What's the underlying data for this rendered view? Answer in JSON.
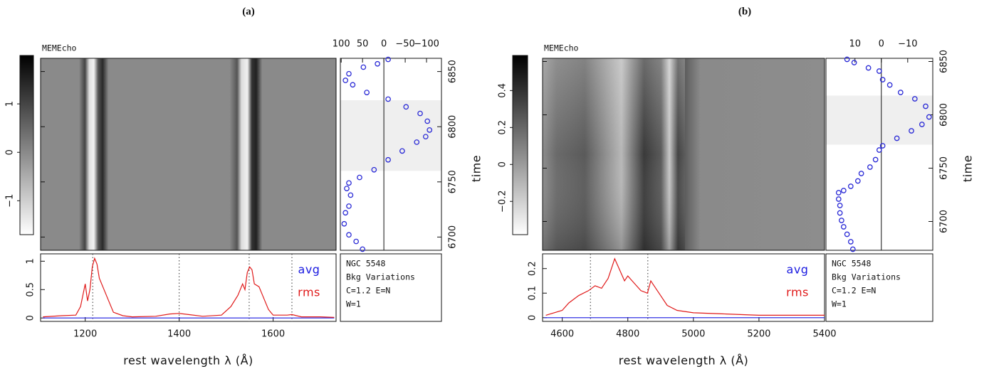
{
  "chart_data": [
    {
      "type": "echo-map",
      "label": "(a)",
      "title": "MEMEcho",
      "colorbar": {
        "lim": [
          -1.7,
          2.0
        ],
        "ticks": [
          {
            "value": -1,
            "label": "−1"
          },
          0,
          1
        ]
      },
      "lightcurve": {
        "xlim": [
          102,
          -135
        ],
        "xticks": [
          100,
          50,
          0,
          {
            "value": -50,
            "label": "−50"
          },
          {
            "value": -100,
            "label": "−100"
          }
        ],
        "ylim": [
          6688,
          6862
        ],
        "yticks": [
          6700,
          6750,
          6800,
          6850
        ],
        "ylabel": "time",
        "band": [
          6760,
          6824
        ],
        "color": "#2b2bd6",
        "x": [
          50,
          65,
          82,
          93,
          90,
          82,
          78,
          87,
          82,
          57,
          23,
          -10,
          -43,
          -77,
          -98,
          -107,
          -102,
          -85,
          -52,
          -10,
          40,
          73,
          90,
          82,
          48,
          15,
          -10
        ],
        "y": [
          6689,
          6696,
          6702,
          6712,
          6722,
          6728,
          6738,
          6744,
          6749,
          6754,
          6761,
          6770,
          6778,
          6786,
          6791,
          6797,
          6805,
          6812,
          6818,
          6825,
          6831,
          6838,
          6842,
          6848,
          6854,
          6857,
          6861
        ]
      },
      "spectrum": {
        "xlim": [
          1105,
          1734
        ],
        "xticks": [
          1200,
          1400,
          1600
        ],
        "ylim": [
          -0.06,
          1.13
        ],
        "yticks": [
          0,
          0.5,
          1
        ],
        "xlabel": "rest wavelength λ (Å)",
        "lines": [
          1216,
          1400,
          1549,
          1640
        ],
        "series": [
          {
            "name": "avg",
            "color": "#1a1ae0",
            "x": [
              1110,
              1730
            ],
            "values": [
              0,
              0
            ]
          },
          {
            "name": "rms",
            "color": "#e01a1a",
            "x": [
              1110,
              1150,
              1180,
              1190,
              1195,
              1200,
              1205,
              1210,
              1215,
              1220,
              1225,
              1230,
              1240,
              1250,
              1260,
              1280,
              1300,
              1350,
              1380,
              1400,
              1420,
              1450,
              1490,
              1510,
              1525,
              1535,
              1540,
              1545,
              1550,
              1555,
              1560,
              1570,
              1575,
              1580,
              1590,
              1600,
              1630,
              1640,
              1660,
              1700,
              1730
            ],
            "values": [
              0.02,
              0.04,
              0.05,
              0.2,
              0.4,
              0.6,
              0.3,
              0.5,
              0.9,
              1.05,
              0.95,
              0.7,
              0.5,
              0.3,
              0.1,
              0.04,
              0.02,
              0.03,
              0.07,
              0.08,
              0.06,
              0.03,
              0.05,
              0.2,
              0.4,
              0.6,
              0.5,
              0.8,
              0.9,
              0.85,
              0.6,
              0.55,
              0.45,
              0.35,
              0.15,
              0.05,
              0.05,
              0.06,
              0.02,
              0.02,
              0.01
            ]
          }
        ]
      },
      "notes": [
        "NGC 5548",
        "Bkg Variations",
        "C=1.2 E=N",
        "W=1"
      ]
    },
    {
      "type": "echo-map",
      "label": "(b)",
      "title": "MEMEcho",
      "colorbar": {
        "lim": [
          -0.38,
          0.59
        ],
        "ticks": [
          {
            "value": -0.2,
            "label": "−0.2"
          },
          0,
          0.2,
          0.4
        ]
      },
      "lightcurve": {
        "xlim": [
          21,
          -19.5
        ],
        "xticks": [
          10,
          0,
          {
            "value": -10,
            "label": "−10"
          }
        ],
        "ylim": [
          6673,
          6853
        ],
        "yticks": [
          6700,
          6750,
          6800,
          6850
        ],
        "ylabel": "time",
        "band": [
          6772,
          6818
        ],
        "color": "#2b2bd6",
        "x": [
          10.8,
          11.6,
          13,
          14.3,
          15.1,
          15.7,
          15.7,
          16.2,
          16.2,
          14.3,
          11.6,
          8.9,
          7.6,
          4.3,
          2.2,
          0.8,
          -0.5,
          -5.9,
          -11.4,
          -15.4,
          -18.1,
          -16.8,
          -12.7,
          -7.3,
          -3.2,
          -0.5,
          0.8,
          4.9,
          10.3,
          13
        ],
        "y": [
          6674,
          6681,
          6688,
          6695,
          6701,
          6708,
          6715,
          6721,
          6727,
          6729,
          6733,
          6738,
          6745,
          6751,
          6758,
          6767,
          6771,
          6778,
          6785,
          6791,
          6798,
          6808,
          6815,
          6821,
          6828,
          6833,
          6841,
          6844,
          6849,
          6852
        ]
      },
      "spectrum": {
        "xlim": [
          4540,
          5400
        ],
        "xticks": [
          4600,
          4800,
          5000,
          5200,
          5400
        ],
        "ylim": [
          -0.015,
          0.26
        ],
        "yticks": [
          0,
          0.1,
          0.2
        ],
        "xlabel": "rest wavelength λ (Å)",
        "lines": [
          4686,
          4861
        ],
        "series": [
          {
            "name": "avg",
            "color": "#1a1ae0",
            "x": [
              4545,
              5400
            ],
            "values": [
              0,
              0
            ]
          },
          {
            "name": "rms",
            "color": "#e01a1a",
            "x": [
              4550,
              4600,
              4620,
              4650,
              4680,
              4700,
              4720,
              4740,
              4750,
              4760,
              4770,
              4790,
              4800,
              4820,
              4840,
              4860,
              4870,
              4880,
              4900,
              4920,
              4950,
              5000,
              5100,
              5200,
              5300,
              5400
            ],
            "values": [
              0.01,
              0.03,
              0.06,
              0.09,
              0.11,
              0.13,
              0.12,
              0.16,
              0.2,
              0.24,
              0.21,
              0.15,
              0.17,
              0.14,
              0.11,
              0.1,
              0.15,
              0.13,
              0.09,
              0.05,
              0.03,
              0.02,
              0.015,
              0.01,
              0.01,
              0.01
            ]
          }
        ]
      },
      "notes": [
        "NGC 5548",
        "Bkg Variations",
        "C=1.2 E=N",
        "W=1"
      ]
    }
  ]
}
